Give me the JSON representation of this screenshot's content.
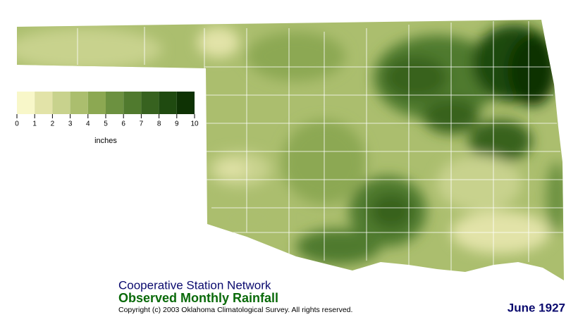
{
  "legend": {
    "ticks": [
      0,
      1,
      2,
      3,
      4,
      5,
      6,
      7,
      8,
      9,
      10
    ],
    "unit": "inches",
    "colors": [
      "#f8f7c9",
      "#e2e3a8",
      "#c8d28d",
      "#abbe6e",
      "#8ca852",
      "#6c9140",
      "#507a2e",
      "#37621f",
      "#1f4a10",
      "#0e3204"
    ]
  },
  "network": "Cooperative Station Network",
  "title": "Observed Monthly Rainfall",
  "copyright": "Copyright (c) 2003 Oklahoma Climatological Survey. All rights reserved.",
  "date": "June 1927"
}
